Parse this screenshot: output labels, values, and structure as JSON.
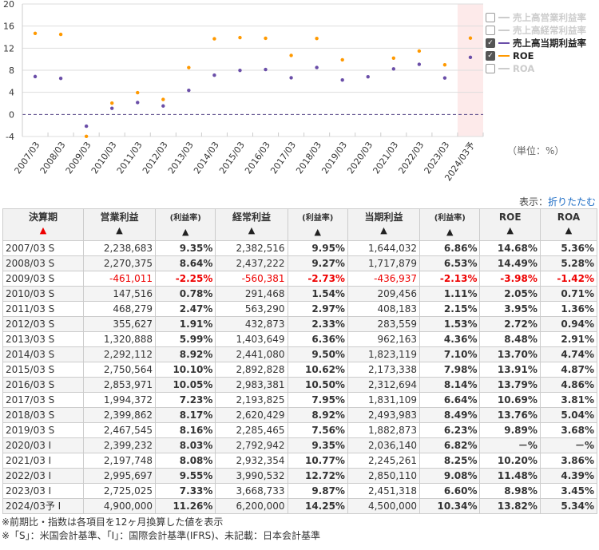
{
  "chart_data": {
    "type": "line",
    "categories": [
      "2007/03",
      "2008/03",
      "2009/03",
      "2010/03",
      "2011/03",
      "2012/03",
      "2013/03",
      "2014/03",
      "2015/03",
      "2016/03",
      "2017/03",
      "2018/03",
      "2019/03",
      "2020/03",
      "2021/03",
      "2022/03",
      "2023/03",
      "2024/03予"
    ],
    "ylim": [
      -4,
      20
    ],
    "yticks": [
      "20",
      "16",
      "12",
      "8",
      "4",
      "0",
      "-4"
    ],
    "series": [
      {
        "name": "売上高当期利益率",
        "color": "#6a4ea8",
        "values": [
          6.86,
          6.53,
          -2.13,
          1.11,
          2.15,
          1.53,
          4.36,
          7.1,
          7.98,
          8.14,
          6.64,
          8.49,
          6.23,
          6.82,
          8.25,
          9.08,
          6.6,
          10.34
        ]
      },
      {
        "name": "ROE",
        "color": "#ff9900",
        "values": [
          14.68,
          14.49,
          -3.98,
          2.05,
          3.95,
          2.72,
          8.48,
          13.7,
          13.91,
          13.79,
          10.69,
          13.76,
          9.89,
          null,
          10.2,
          11.48,
          8.98,
          13.82
        ]
      }
    ],
    "legend": [
      {
        "label": "売上高営業利益率",
        "checked": false
      },
      {
        "label": "売上高経常利益率",
        "checked": false
      },
      {
        "label": "売上高当期利益率",
        "checked": true
      },
      {
        "label": "ROE",
        "checked": true
      },
      {
        "label": "ROA",
        "checked": false
      }
    ],
    "unit": "（単位：%）"
  },
  "toggle": {
    "label": "表示：",
    "link": "折りたたむ"
  },
  "table": {
    "headers": [
      "決算期",
      "営業利益",
      "(利益率)",
      "経常利益",
      "(利益率)",
      "当期利益",
      "(利益率)",
      "ROE",
      "ROA"
    ],
    "rows": [
      [
        "2007/03 S",
        "2,238,683",
        "9.35%",
        "2,382,516",
        "9.95%",
        "1,644,032",
        "6.86%",
        "14.68%",
        "5.36%"
      ],
      [
        "2008/03 S",
        "2,270,375",
        "8.64%",
        "2,437,222",
        "9.27%",
        "1,717,879",
        "6.53%",
        "14.49%",
        "5.28%"
      ],
      [
        "2009/03 S",
        "-461,011",
        "-2.25%",
        "-560,381",
        "-2.73%",
        "-436,937",
        "-2.13%",
        "-3.98%",
        "-1.42%"
      ],
      [
        "2010/03 S",
        "147,516",
        "0.78%",
        "291,468",
        "1.54%",
        "209,456",
        "1.11%",
        "2.05%",
        "0.71%"
      ],
      [
        "2011/03 S",
        "468,279",
        "2.47%",
        "563,290",
        "2.97%",
        "408,183",
        "2.15%",
        "3.95%",
        "1.36%"
      ],
      [
        "2012/03 S",
        "355,627",
        "1.91%",
        "432,873",
        "2.33%",
        "283,559",
        "1.53%",
        "2.72%",
        "0.94%"
      ],
      [
        "2013/03 S",
        "1,320,888",
        "5.99%",
        "1,403,649",
        "6.36%",
        "962,163",
        "4.36%",
        "8.48%",
        "2.91%"
      ],
      [
        "2014/03 S",
        "2,292,112",
        "8.92%",
        "2,441,080",
        "9.50%",
        "1,823,119",
        "7.10%",
        "13.70%",
        "4.74%"
      ],
      [
        "2015/03 S",
        "2,750,564",
        "10.10%",
        "2,892,828",
        "10.62%",
        "2,173,338",
        "7.98%",
        "13.91%",
        "4.87%"
      ],
      [
        "2016/03 S",
        "2,853,971",
        "10.05%",
        "2,983,381",
        "10.50%",
        "2,312,694",
        "8.14%",
        "13.79%",
        "4.86%"
      ],
      [
        "2017/03 S",
        "1,994,372",
        "7.23%",
        "2,193,825",
        "7.95%",
        "1,831,109",
        "6.64%",
        "10.69%",
        "3.81%"
      ],
      [
        "2018/03 S",
        "2,399,862",
        "8.17%",
        "2,620,429",
        "8.92%",
        "2,493,983",
        "8.49%",
        "13.76%",
        "5.04%"
      ],
      [
        "2019/03 S",
        "2,467,545",
        "8.16%",
        "2,285,465",
        "7.56%",
        "1,882,873",
        "6.23%",
        "9.89%",
        "3.68%"
      ],
      [
        "2020/03 I",
        "2,399,232",
        "8.03%",
        "2,792,942",
        "9.35%",
        "2,036,140",
        "6.82%",
        "－%",
        "－%"
      ],
      [
        "2021/03 I",
        "2,197,748",
        "8.08%",
        "2,932,354",
        "10.77%",
        "2,245,261",
        "8.25%",
        "10.20%",
        "3.86%"
      ],
      [
        "2022/03 I",
        "2,995,697",
        "9.55%",
        "3,990,532",
        "12.72%",
        "2,850,110",
        "9.08%",
        "11.48%",
        "4.39%"
      ],
      [
        "2023/03 I",
        "2,725,025",
        "7.33%",
        "3,668,733",
        "9.87%",
        "2,451,318",
        "6.60%",
        "8.98%",
        "3.45%"
      ],
      [
        "2024/03予 I",
        "4,900,000",
        "11.26%",
        "6,200,000",
        "14.25%",
        "4,500,000",
        "10.34%",
        "13.82%",
        "5.34%"
      ]
    ]
  },
  "notes": [
    "※前期比・指数は各項目を12ヶ月換算した値を表示",
    "※「S」：米国会計基準、「I」：国際会計基準(IFRS)、未記載：日本会計基準"
  ]
}
